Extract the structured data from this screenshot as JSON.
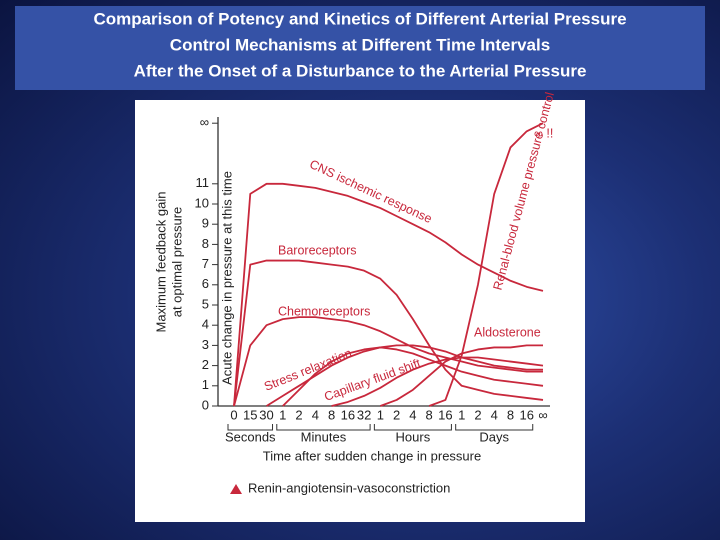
{
  "title_lines": [
    "Comparison of Potency and Kinetics of Different Arterial Pressure",
    "Control Mechanisms at Different Time Intervals",
    "After the Onset of a Disturbance to the Arterial Pressure"
  ],
  "chart_data": {
    "type": "line",
    "y_label_lines": [
      "Maximum feedback gain",
      "at optimal pressure"
    ],
    "y2_label": "Acute change in pressure at this time",
    "x_label": "Time after sudden change in pressure",
    "x_groups": [
      "Seconds",
      "Minutes",
      "Hours",
      "Days"
    ],
    "annotation": "∞ !!",
    "categories": [
      "0",
      "15",
      "30",
      "1",
      "2",
      "4",
      "8",
      "16",
      "32",
      "1",
      "2",
      "4",
      "8",
      "16",
      "1",
      "2",
      "4",
      "8",
      "16",
      "∞"
    ],
    "ylim": [
      0,
      14.3
    ],
    "yticks": [
      0,
      1,
      2,
      3,
      4,
      5,
      6,
      7,
      8,
      9,
      10,
      11,
      {
        "value": 14,
        "label": "∞"
      }
    ],
    "color": "#c8283c",
    "series": [
      {
        "name": "CNS ischemic response",
        "values": [
          0,
          10.5,
          11,
          11,
          10.9,
          10.8,
          10.6,
          10.4,
          10.1,
          9.8,
          9.4,
          9,
          8.6,
          8.1,
          7.5,
          7,
          6.6,
          6.2,
          5.9,
          5.7
        ]
      },
      {
        "name": "Baroreceptors",
        "values": [
          0,
          7,
          7.2,
          7.2,
          7.2,
          7.1,
          7,
          6.9,
          6.7,
          6.3,
          5.5,
          4.3,
          3,
          1.8,
          1,
          0.8,
          0.6,
          0.5,
          0.4,
          0.3
        ]
      },
      {
        "name": "Chemoreceptors",
        "values": [
          0,
          3,
          4,
          4.3,
          4.4,
          4.4,
          4.3,
          4.2,
          4,
          3.7,
          3.3,
          2.9,
          2.6,
          2.4,
          2.2,
          2,
          1.9,
          1.8,
          1.7,
          1.7
        ]
      },
      {
        "name": "Stress relaxation",
        "values": [
          null,
          null,
          0,
          0.5,
          1,
          1.5,
          2,
          2.4,
          2.7,
          2.9,
          3,
          3,
          2.9,
          2.7,
          2.4,
          2.2,
          2,
          1.9,
          1.8,
          1.8
        ]
      },
      {
        "name": "Capillary fluid shift",
        "values": [
          null,
          null,
          null,
          null,
          null,
          null,
          0,
          0.2,
          0.5,
          0.9,
          1.4,
          1.8,
          2.1,
          2.3,
          2.4,
          2.4,
          2.3,
          2.2,
          2.1,
          2
        ]
      },
      {
        "name": "Aldosterone",
        "values": [
          null,
          null,
          null,
          null,
          null,
          null,
          null,
          null,
          null,
          0,
          0.3,
          0.8,
          1.5,
          2.2,
          2.6,
          2.8,
          2.9,
          2.9,
          3,
          3
        ]
      },
      {
        "name": "Renal-blood volume pressure control",
        "values": [
          null,
          null,
          null,
          null,
          null,
          null,
          null,
          null,
          null,
          null,
          null,
          null,
          0,
          0.3,
          2.5,
          6,
          10.5,
          12.8,
          13.6,
          14
        ]
      },
      {
        "name": "Renin-angiotensin-vasoconstriction",
        "values": [
          null,
          null,
          null,
          0,
          0.8,
          1.6,
          2.2,
          2.6,
          2.8,
          2.9,
          2.8,
          2.6,
          2.3,
          2,
          1.7,
          1.5,
          1.3,
          1.2,
          1.1,
          1
        ]
      }
    ]
  }
}
